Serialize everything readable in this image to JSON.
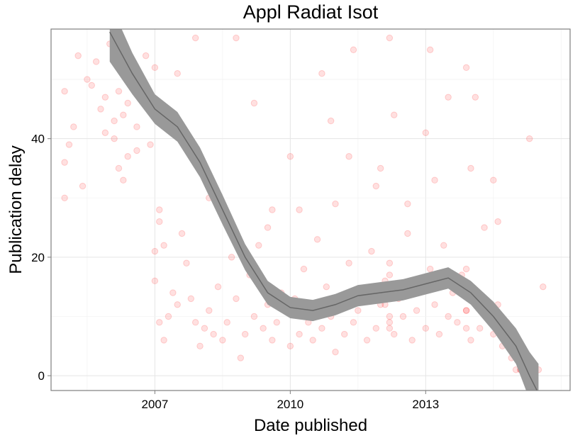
{
  "chart_data": {
    "type": "scatter",
    "title": "Appl Radiat Isot",
    "xlabel": "Date published",
    "ylabel": "Publication delay",
    "xlim": [
      2004.7,
      2016.2
    ],
    "ylim": [
      -2.5,
      58.5
    ],
    "x_ticks": [
      2007,
      2010,
      2013
    ],
    "y_ticks": [
      0,
      20,
      40
    ],
    "grid": true,
    "legend": "none",
    "point_color": "#ff0000",
    "point_alpha": 0.12,
    "band_color": "#999999",
    "trend_line_color": "#666666",
    "trend": {
      "x": [
        2006.0,
        2006.5,
        2007.0,
        2007.5,
        2008.0,
        2008.5,
        2009.0,
        2009.5,
        2010.0,
        2010.5,
        2011.0,
        2011.5,
        2012.0,
        2012.5,
        2013.0,
        2013.5,
        2014.0,
        2014.5,
        2015.0,
        2015.3,
        2015.5
      ],
      "y": [
        58,
        51,
        45,
        42,
        36,
        28,
        20,
        14,
        11.5,
        11,
        12,
        13.5,
        14,
        14.5,
        15.5,
        16.5,
        14,
        10,
        5,
        0,
        -3
      ],
      "band_halfwidth": [
        5,
        3.5,
        2.5,
        2.5,
        2.5,
        2.5,
        2.2,
        2.0,
        1.8,
        1.8,
        1.8,
        1.8,
        1.8,
        1.8,
        1.8,
        1.8,
        2.0,
        2.5,
        3.0,
        4.0,
        5.0
      ]
    },
    "series": [
      {
        "type": "scatter",
        "points": [
          [
            2005.0,
            48
          ],
          [
            2005.1,
            39
          ],
          [
            2005.2,
            42
          ],
          [
            2005.3,
            54
          ],
          [
            2005.5,
            50
          ],
          [
            2005.6,
            49
          ],
          [
            2005.7,
            53
          ],
          [
            2005.8,
            45
          ],
          [
            2005.9,
            47
          ],
          [
            2006.0,
            56
          ],
          [
            2006.1,
            43
          ],
          [
            2006.1,
            40
          ],
          [
            2006.2,
            48
          ],
          [
            2006.3,
            44
          ],
          [
            2006.4,
            46
          ],
          [
            2006.4,
            37
          ],
          [
            2006.5,
            52
          ],
          [
            2006.6,
            42
          ],
          [
            2006.7,
            50
          ],
          [
            2006.8,
            54
          ],
          [
            2006.9,
            47
          ],
          [
            2007.0,
            52
          ],
          [
            2005.0,
            36
          ],
          [
            2005.0,
            30
          ],
          [
            2005.4,
            32
          ],
          [
            2006.2,
            35
          ],
          [
            2006.3,
            33
          ],
          [
            2005.9,
            41
          ],
          [
            2006.6,
            38
          ],
          [
            2006.9,
            39
          ],
          [
            2007.0,
            21
          ],
          [
            2007.1,
            28
          ],
          [
            2007.1,
            26
          ],
          [
            2007.2,
            22
          ],
          [
            2007.0,
            16
          ],
          [
            2007.1,
            9
          ],
          [
            2007.2,
            6
          ],
          [
            2007.3,
            10
          ],
          [
            2007.4,
            14
          ],
          [
            2007.5,
            12
          ],
          [
            2007.6,
            24
          ],
          [
            2007.7,
            19
          ],
          [
            2007.8,
            13
          ],
          [
            2007.9,
            9
          ],
          [
            2008.0,
            5
          ],
          [
            2008.1,
            8
          ],
          [
            2008.2,
            11
          ],
          [
            2008.3,
            7
          ],
          [
            2008.4,
            15
          ],
          [
            2008.5,
            6
          ],
          [
            2008.6,
            9
          ],
          [
            2008.7,
            20
          ],
          [
            2008.8,
            13
          ],
          [
            2008.9,
            3
          ],
          [
            2009.0,
            7
          ],
          [
            2009.1,
            17
          ],
          [
            2009.2,
            10
          ],
          [
            2009.3,
            22
          ],
          [
            2009.4,
            8
          ],
          [
            2009.5,
            12
          ],
          [
            2009.6,
            6
          ],
          [
            2009.7,
            9
          ],
          [
            2009.8,
            14
          ],
          [
            2009.9,
            11
          ],
          [
            2010.0,
            5
          ],
          [
            2010.1,
            13
          ],
          [
            2010.2,
            7
          ],
          [
            2010.3,
            18
          ],
          [
            2010.4,
            9
          ],
          [
            2010.5,
            6
          ],
          [
            2010.6,
            23
          ],
          [
            2010.7,
            8
          ],
          [
            2010.8,
            15
          ],
          [
            2010.9,
            10
          ],
          [
            2011.0,
            4
          ],
          [
            2011.1,
            12
          ],
          [
            2011.2,
            7
          ],
          [
            2011.3,
            19
          ],
          [
            2011.4,
            9
          ],
          [
            2011.5,
            11
          ],
          [
            2011.6,
            14
          ],
          [
            2011.7,
            6
          ],
          [
            2011.8,
            21
          ],
          [
            2011.9,
            8
          ],
          [
            2012.0,
            12
          ],
          [
            2012.1,
            16
          ],
          [
            2012.2,
            9
          ],
          [
            2012.3,
            7
          ],
          [
            2012.4,
            13
          ],
          [
            2012.5,
            10
          ],
          [
            2012.6,
            24
          ],
          [
            2012.7,
            6
          ],
          [
            2012.8,
            11
          ],
          [
            2012.9,
            15
          ],
          [
            2013.0,
            8
          ],
          [
            2013.1,
            18
          ],
          [
            2013.2,
            12
          ],
          [
            2013.3,
            7
          ],
          [
            2013.4,
            22
          ],
          [
            2013.5,
            10
          ],
          [
            2013.6,
            14
          ],
          [
            2013.7,
            9
          ],
          [
            2013.8,
            17
          ],
          [
            2013.9,
            11
          ],
          [
            2014.0,
            6
          ],
          [
            2014.1,
            13
          ],
          [
            2014.2,
            8
          ],
          [
            2014.3,
            25
          ],
          [
            2014.4,
            10
          ],
          [
            2014.5,
            7
          ],
          [
            2014.6,
            12
          ],
          [
            2014.7,
            5
          ],
          [
            2014.8,
            9
          ],
          [
            2014.9,
            3
          ],
          [
            2015.0,
            1
          ],
          [
            2015.1,
            1
          ],
          [
            2015.2,
            2
          ],
          [
            2015.3,
            1
          ],
          [
            2015.4,
            1
          ],
          [
            2015.5,
            1
          ],
          [
            2008.2,
            30
          ],
          [
            2009.5,
            25
          ],
          [
            2010.2,
            28
          ],
          [
            2011.0,
            29
          ],
          [
            2012.0,
            35
          ],
          [
            2012.3,
            44
          ],
          [
            2013.0,
            41
          ],
          [
            2013.5,
            47
          ],
          [
            2014.0,
            35
          ],
          [
            2014.5,
            33
          ],
          [
            2015.3,
            40
          ],
          [
            2015.6,
            15
          ],
          [
            2008.8,
            57
          ],
          [
            2009.2,
            46
          ],
          [
            2010.7,
            51
          ],
          [
            2011.4,
            55
          ],
          [
            2012.2,
            57
          ],
          [
            2013.1,
            55
          ],
          [
            2013.9,
            52
          ],
          [
            2014.1,
            47
          ],
          [
            2009.6,
            28
          ],
          [
            2010.0,
            37
          ],
          [
            2010.9,
            43
          ],
          [
            2011.3,
            37
          ],
          [
            2011.9,
            32
          ],
          [
            2012.6,
            29
          ],
          [
            2013.2,
            33
          ],
          [
            2014.6,
            26
          ],
          [
            2007.5,
            51
          ],
          [
            2007.9,
            57
          ],
          [
            2012.1,
            12
          ],
          [
            2012.2,
            10
          ],
          [
            2012.2,
            8
          ],
          [
            2012.2,
            14
          ],
          [
            2012.2,
            17
          ],
          [
            2012.2,
            19
          ],
          [
            2013.9,
            8
          ],
          [
            2013.9,
            11
          ],
          [
            2013.9,
            18
          ],
          [
            2015.1,
            1
          ],
          [
            2015.2,
            1
          ]
        ]
      }
    ]
  }
}
